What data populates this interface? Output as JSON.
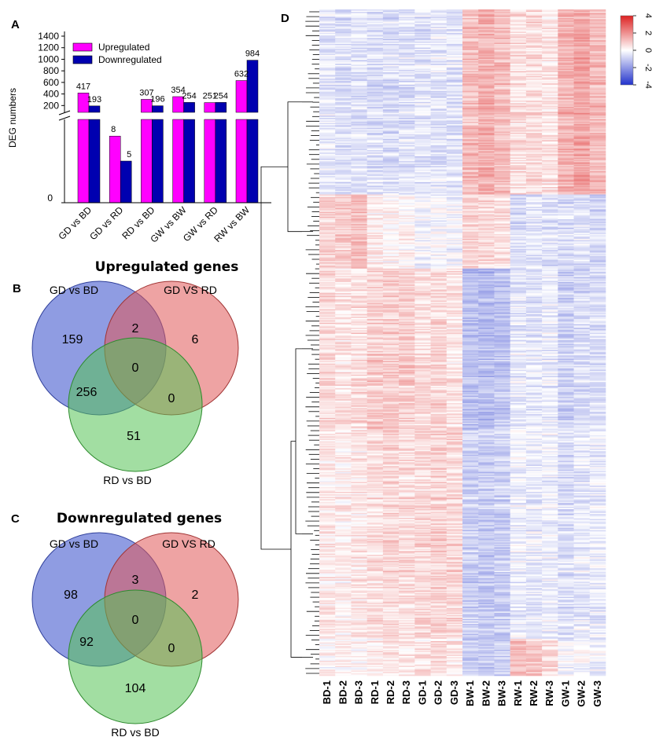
{
  "panels": {
    "a": "A",
    "b": "B",
    "c": "C",
    "d": "D"
  },
  "chart_data": [
    {
      "type": "bar",
      "panel": "A",
      "ylabel": "DEG numbers",
      "categories": [
        "GD vs BD",
        "GD vs RD",
        "RD vs BD",
        "GW vs BW",
        "GW vs RD",
        "RW vs BW"
      ],
      "series": [
        {
          "name": "Upregulated",
          "color": "#ff00ff",
          "values": [
            417,
            8,
            307,
            354,
            251,
            632
          ]
        },
        {
          "name": "Downregulated",
          "color": "#0000b0",
          "values": [
            193,
            5,
            196,
            254,
            254,
            984
          ]
        }
      ],
      "upper_ticks": [
        "1400",
        "1200",
        "1000",
        "800",
        "600",
        "400",
        "200"
      ],
      "upper_tick_values": [
        1400,
        1200,
        1000,
        800,
        600,
        400,
        200
      ],
      "lower_tick": "0",
      "ylim_upper": [
        150,
        1400
      ],
      "ylim_lower": [
        0,
        10
      ],
      "axis_break": true
    },
    {
      "type": "heatmap",
      "panel": "D",
      "columns": [
        "BD-1",
        "BD-2",
        "BD-3",
        "RD-1",
        "RD-2",
        "RD-3",
        "GD-1",
        "GD-2",
        "GD-3",
        "BW-1",
        "BW-2",
        "BW-3",
        "RW-1",
        "RW-2",
        "RW-3",
        "GW-1",
        "GW-2",
        "GW-3"
      ],
      "color_scale": {
        "min": -4,
        "max": 4,
        "ticks": [
          "4",
          "2",
          "0",
          "-2",
          "-4"
        ],
        "low": "#2233cc",
        "mid": "#ffffff",
        "high": "#dd2222"
      },
      "row_clusters": [
        {
          "rows": 150,
          "means": [
            -0.4,
            -0.6,
            -0.5,
            -0.6,
            -0.6,
            -0.5,
            -0.5,
            -0.4,
            -0.5,
            1.2,
            1.5,
            1.2,
            0.6,
            0.7,
            0.5,
            1.4,
            1.7,
            1.3
          ]
        },
        {
          "rows": 60,
          "means": [
            0.8,
            0.9,
            1.2,
            0.3,
            0.2,
            0.2,
            -0.2,
            -0.1,
            -0.2,
            0.8,
            0.7,
            0.6,
            -0.7,
            -0.5,
            -0.6,
            -0.6,
            -0.5,
            -0.7
          ]
        },
        {
          "rows": 130,
          "means": [
            0.7,
            0.5,
            0.6,
            0.9,
            0.9,
            0.9,
            0.6,
            0.7,
            0.5,
            -1.2,
            -1.3,
            -1.1,
            -0.4,
            -0.5,
            -0.4,
            -0.9,
            -0.7,
            -0.6
          ]
        },
        {
          "rows": 170,
          "means": [
            0.4,
            0.3,
            0.4,
            0.6,
            0.7,
            0.6,
            0.7,
            0.8,
            0.7,
            -0.9,
            -1.0,
            -0.9,
            -0.3,
            -0.4,
            -0.3,
            -0.6,
            -0.4,
            -0.4
          ]
        },
        {
          "rows": 30,
          "means": [
            0.1,
            0.2,
            0.1,
            0.3,
            0.4,
            0.3,
            0.5,
            0.6,
            0.4,
            -1.0,
            -1.0,
            -1.0,
            1.2,
            1.0,
            0.6,
            -0.2,
            -0.1,
            -0.3
          ]
        }
      ]
    }
  ],
  "venn_up": {
    "title": "Upregulated genes",
    "set_a": "GD vs BD",
    "set_b": "GD VS RD",
    "set_c": "RD vs BD",
    "a_only": "159",
    "b_only": "6",
    "c_only": "51",
    "ab": "2",
    "ac": "256",
    "bc": "0",
    "abc": "0"
  },
  "venn_down": {
    "title": "Downregulated genes",
    "set_a": "GD vs BD",
    "set_b": "GD VS RD",
    "set_c": "RD vs BD",
    "a_only": "98",
    "b_only": "2",
    "c_only": "104",
    "ab": "3",
    "ac": "92",
    "bc": "0",
    "abc": "0"
  },
  "venn_colors": {
    "a": "#4a5fd0",
    "b": "#e05858",
    "c": "#55c255"
  }
}
